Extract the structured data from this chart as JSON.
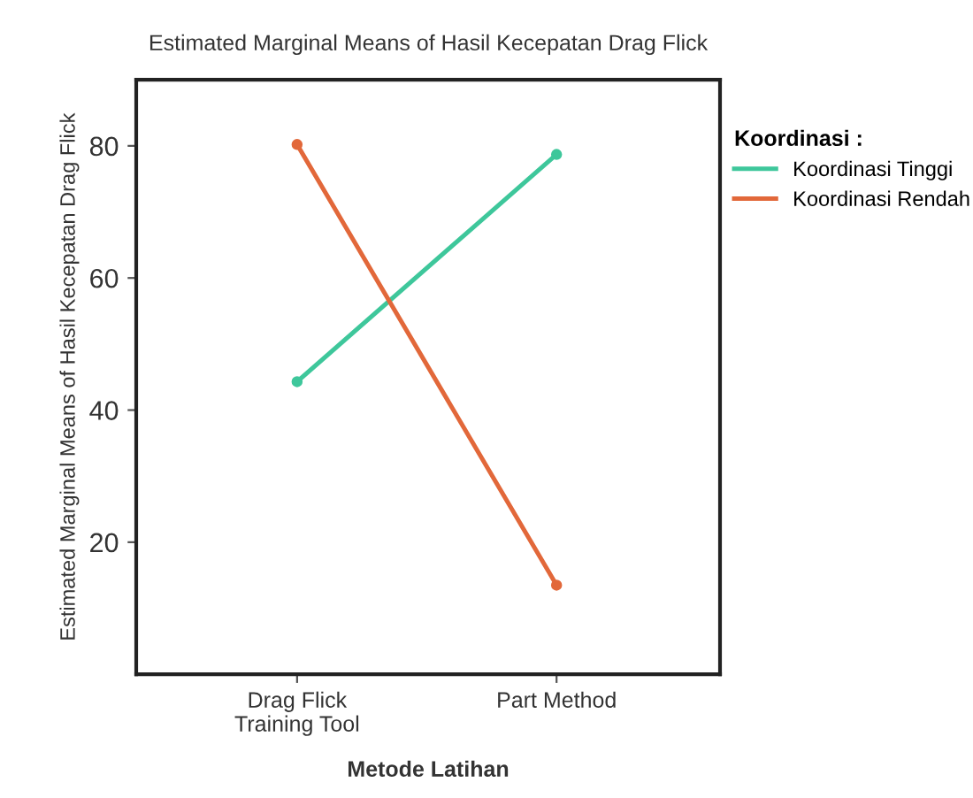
{
  "chart_data": {
    "type": "line",
    "title": "Estimated Marginal Means of Hasil Kecepatan Drag Flick",
    "xlabel": "Metode Latihan",
    "ylabel": "Estimated Marginal Means of Hasil Kecepatan Drag Flick",
    "legend_title": "Koordinasi :",
    "categories": [
      "Drag Flick\nTraining Tool",
      "Part Method"
    ],
    "series": [
      {
        "name": "Koordinasi Tinggi",
        "color": "#3ec79b",
        "values": [
          44.3,
          78.7
        ]
      },
      {
        "name": "Koordinasi Rendah",
        "color": "#e2683a",
        "values": [
          80.2,
          13.5
        ]
      }
    ],
    "ylim": [
      0,
      90
    ],
    "yticks": [
      20,
      40,
      60,
      80
    ],
    "grid": false,
    "legend": "right",
    "marker": "circle",
    "line_style": "solid"
  }
}
